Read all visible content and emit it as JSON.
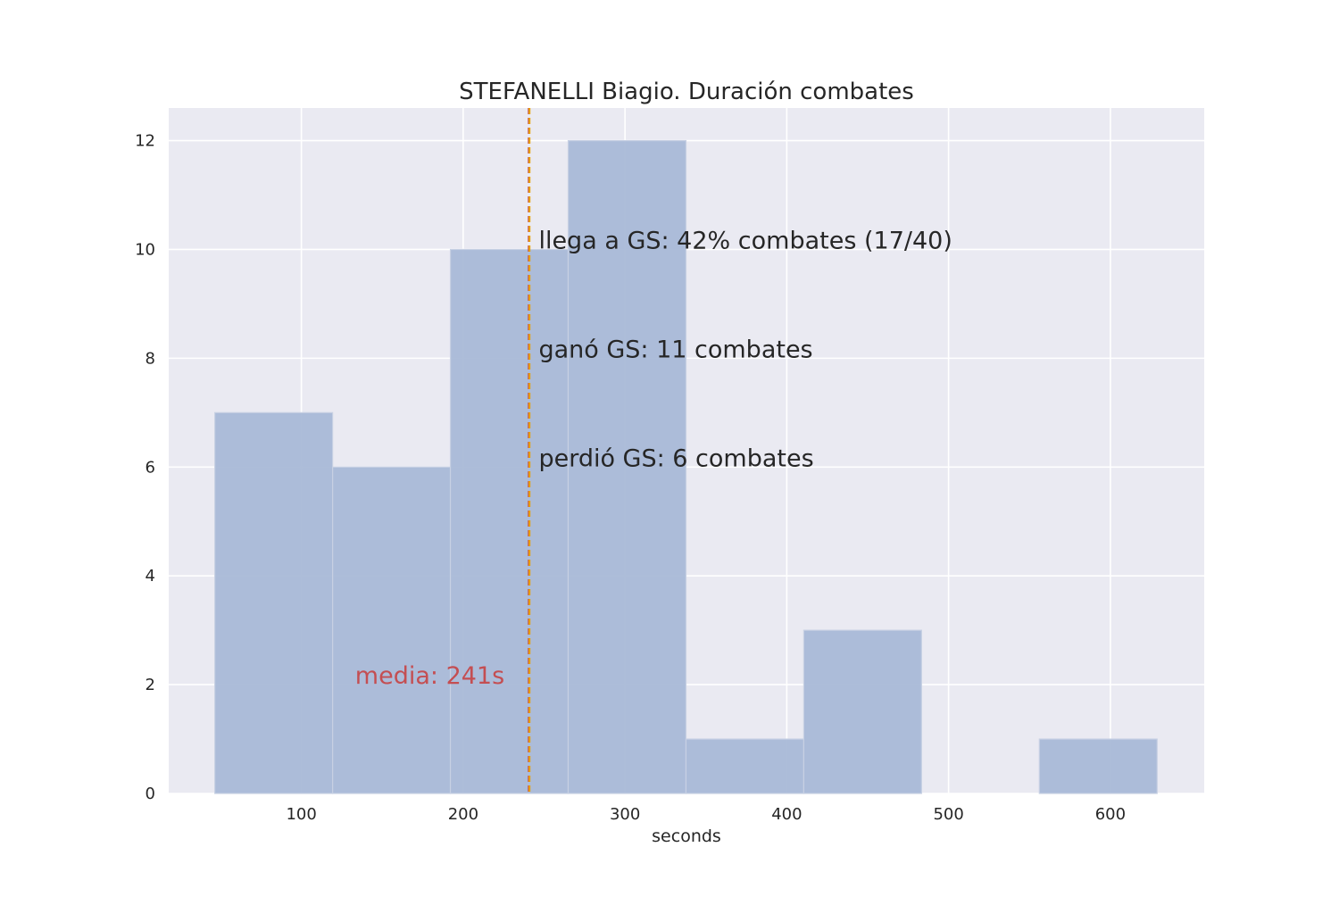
{
  "chart_data": {
    "type": "bar",
    "title": "STEFANELLI Biagio. Duración combates",
    "xlabel": "seconds",
    "ylabel": "",
    "xlim": [
      18,
      658
    ],
    "ylim": [
      0,
      12.6
    ],
    "x_ticks": [
      100,
      200,
      300,
      400,
      500,
      600
    ],
    "y_ticks": [
      0,
      2,
      4,
      6,
      8,
      10,
      12
    ],
    "grid": true,
    "bins": [
      {
        "start": 46.5,
        "end": 119.3,
        "count": 7
      },
      {
        "start": 119.3,
        "end": 192.1,
        "count": 6
      },
      {
        "start": 192.1,
        "end": 264.9,
        "count": 10
      },
      {
        "start": 264.9,
        "end": 337.7,
        "count": 12
      },
      {
        "start": 337.7,
        "end": 410.5,
        "count": 1
      },
      {
        "start": 410.5,
        "end": 483.3,
        "count": 3
      },
      {
        "start": 483.3,
        "end": 556.1,
        "count": 0
      },
      {
        "start": 556.1,
        "end": 628.9,
        "count": 1
      }
    ],
    "mean_line": {
      "x": 241,
      "label": "media: 241s",
      "label_y": 2.0
    },
    "median_line": {
      "x": 240.5
    },
    "annotations": [
      {
        "text": "llega a GS: 42% combates (17/40)",
        "x": 245,
        "y": 10.0
      },
      {
        "text": "ganó GS: 11 combates",
        "x": 245,
        "y": 8.0
      },
      {
        "text": "perdió GS: 6 combates",
        "x": 245,
        "y": 6.0
      }
    ],
    "colors": {
      "background": "#eaeaf2",
      "grid": "#ffffff",
      "bar": "#a9b9d7",
      "bar_edge": "#c7d0e3",
      "mean_line": "#e6a000",
      "median_line": "#c44e52",
      "mean_label": "#c44e52"
    }
  }
}
